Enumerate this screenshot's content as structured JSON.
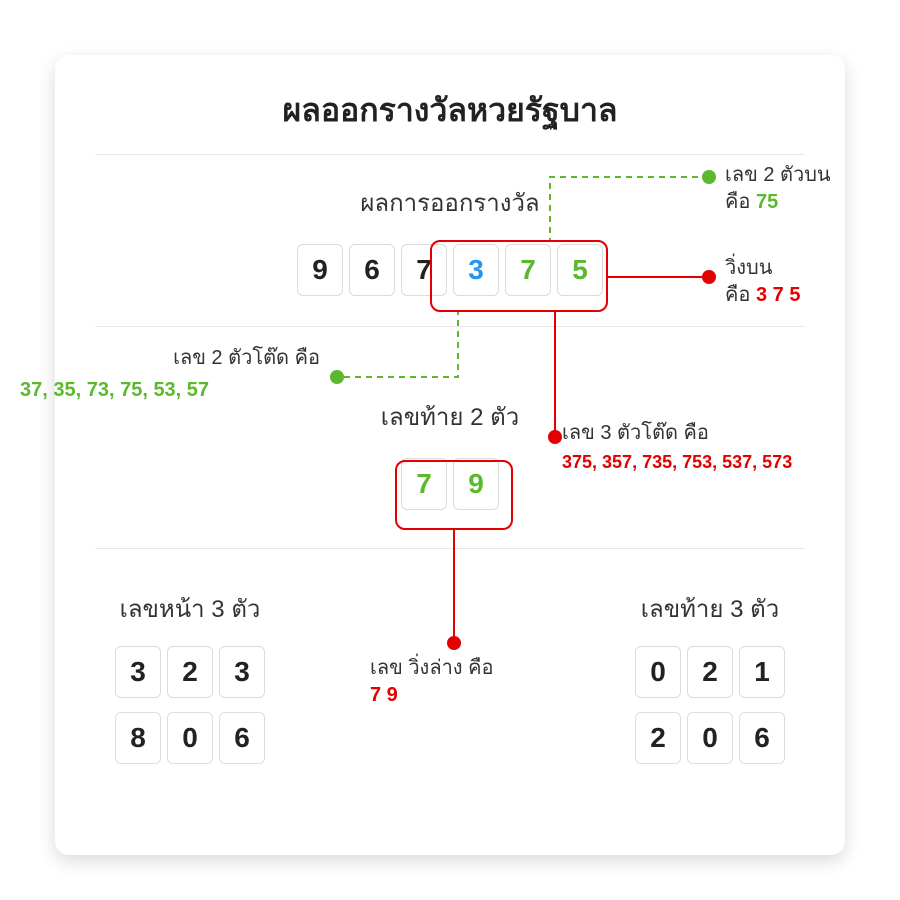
{
  "title": "ผลออกรางวัลหวยรัฐบาล",
  "section_main": "ผลการออกรางวัล",
  "main_digits": [
    "9",
    "6",
    "7",
    "3",
    "7",
    "5"
  ],
  "main_digit_colors": [
    "#222222",
    "#222222",
    "#222222",
    "#2196f3",
    "#5cb82c",
    "#5cb82c"
  ],
  "section_tail2": "เลขท้าย 2 ตัว",
  "tail2_digits": [
    "7",
    "9"
  ],
  "tail2_color": "#5cb82c",
  "section_front3": "เลขหน้า 3 ตัว",
  "front3_rows": [
    [
      "3",
      "2",
      "3"
    ],
    [
      "8",
      "0",
      "6"
    ]
  ],
  "section_back3": "เลขท้าย 3 ตัว",
  "back3_rows": [
    [
      "0",
      "2",
      "1"
    ],
    [
      "2",
      "0",
      "6"
    ]
  ],
  "annot_top2": {
    "label": "เลข 2 ตัวบน",
    "prefix": "คือ ",
    "value": "75"
  },
  "annot_run_top": {
    "label": "วิ่งบน",
    "prefix": "คือ ",
    "value": "3 7 5"
  },
  "annot_tote2": {
    "label": "เลข 2 ตัวโต๊ด คือ",
    "value": "37, 35, 73, 75, 53, 57"
  },
  "annot_tote3": {
    "label": "เลข 3 ตัวโต๊ด คือ",
    "value": "375, 357, 735, 753, 537, 573"
  },
  "annot_run_bottom": {
    "label": "เลข วิ่งล่าง คือ",
    "value": "7 9"
  },
  "colors": {
    "red": "#e40000",
    "green": "#5cb82c",
    "blue": "#2196f3",
    "border": "#dcdcdc",
    "text": "#222222"
  }
}
